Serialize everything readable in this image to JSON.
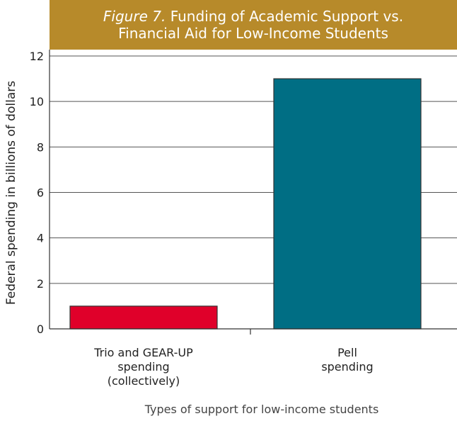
{
  "chart_data": {
    "type": "bar",
    "title_prefix": "Figure 7.",
    "title_line1": "Funding of Academic Support vs.",
    "title_line2": "Financial Aid for Low-Income Students",
    "xlabel": "Types of support for low-income students",
    "ylabel": "Federal spending in billions of dollars",
    "ylim": [
      0,
      12
    ],
    "yticks": [
      "0",
      "2",
      "4",
      "6",
      "8",
      "10",
      "12"
    ],
    "categories": [
      "Trio and GEAR-UP\nspending\n(collectively)",
      "Pell\nspending"
    ],
    "values": [
      1,
      11
    ],
    "colors": [
      "#e0002a",
      "#006e84"
    ],
    "grid": true
  }
}
